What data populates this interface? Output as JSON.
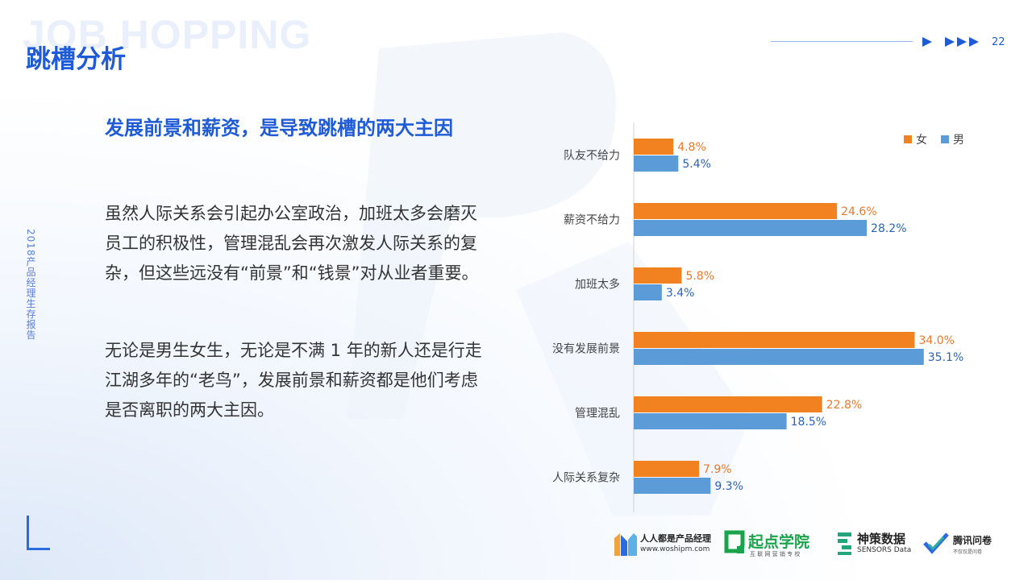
{
  "header": {
    "watermark": "JOB HOPPING",
    "title": "跳槽分析",
    "page_number": "22"
  },
  "side_caption": "2018产品经理生存报告",
  "content": {
    "heading": "发展前景和薪资，是导致跳槽的两大主因",
    "paragraphs": [
      "虽然人际关系会引起办公室政治，加班太多会磨灭员工的积极性，管理混乱会再次激发人际关系的复杂，但这些远没有“前景”和“钱景”对从业者重要。",
      "无论是男生女生，无论是不满 1 年的新人还是行走江湖多年的“老鸟”，发展前景和薪资都是他们考虑是否离职的两大主因。"
    ]
  },
  "chart_data": {
    "type": "bar",
    "orientation": "horizontal",
    "categories": [
      "队友不给力",
      "薪资不给力",
      "加班太多",
      "没有发展前景",
      "管理混乱",
      "人际关系复杂"
    ],
    "series": [
      {
        "name": "女",
        "values": [
          4.8,
          24.6,
          5.8,
          34.0,
          22.8,
          7.9
        ],
        "labels": [
          "4.8%",
          "24.6%",
          "5.8%",
          "34.0%",
          "22.8%",
          "7.9%"
        ],
        "color": "#f28120",
        "label_color": "#e8782a"
      },
      {
        "name": "男",
        "values": [
          5.4,
          28.2,
          3.4,
          35.1,
          18.5,
          9.3
        ],
        "labels": [
          "5.4%",
          "28.2%",
          "3.4%",
          "35.1%",
          "18.5%",
          "9.3%"
        ],
        "color": "#5b9bd8",
        "label_color": "#2b63b8"
      }
    ],
    "value_unit": "%",
    "legend": "top-right",
    "grid": false
  },
  "logos": {
    "renren_name": "人人都是产品经理",
    "renren_url": "www.woshipm.com",
    "qidian_name": "起点学院",
    "qidian_sub": "互 联 网 营 销 专 校",
    "sensors_name": "神策数据",
    "sensors_sub": "SENSORS Data",
    "tencent_name": "腾讯问卷",
    "tencent_sub": "不仅仅是问卷"
  },
  "colors": {
    "brand_blue": "#1f5bd7",
    "female": "#f28120",
    "male": "#5b9bd8",
    "qidian_green": "#1aa34a",
    "sensors_green": "#1fa67a"
  }
}
